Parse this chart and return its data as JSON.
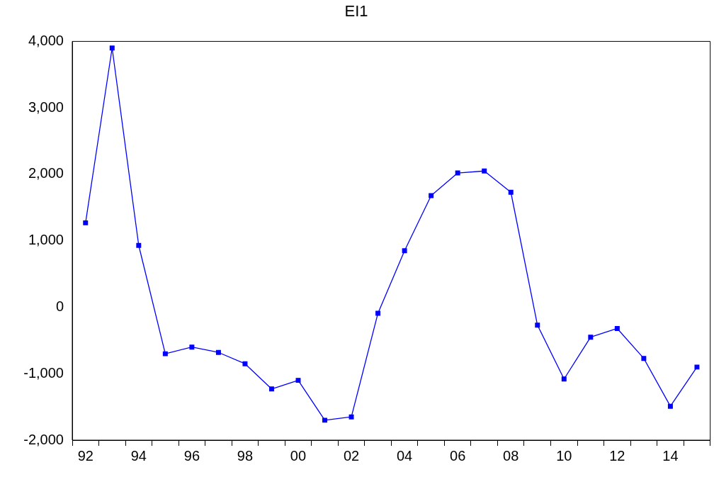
{
  "chart_data": {
    "type": "line",
    "title": "EI1",
    "categories": [
      "92",
      null,
      "94",
      null,
      "96",
      null,
      "98",
      null,
      "00",
      null,
      "02",
      null,
      "04",
      null,
      "06",
      null,
      "08",
      null,
      "10",
      null,
      "12",
      null,
      "14",
      null
    ],
    "series": [
      {
        "color": "#0000ff",
        "values": [
          1270,
          3900,
          930,
          -700,
          -600,
          -680,
          -850,
          -1230,
          -1100,
          -1700,
          -1650,
          -90,
          850,
          1680,
          2020,
          2050,
          1730,
          -270,
          -1080,
          -450,
          -320,
          -770,
          -1490,
          -900
        ]
      }
    ],
    "ylim": [
      -2000,
      4000
    ],
    "yticks": [
      {
        "value": -2000,
        "label": "-2,000"
      },
      {
        "value": -1000,
        "label": "-1,000"
      },
      0,
      {
        "value": 1000,
        "label": "1,000"
      },
      {
        "value": 2000,
        "label": "2,000"
      },
      {
        "value": 3000,
        "label": "3,000"
      },
      {
        "value": 4000,
        "label": "4,000"
      }
    ],
    "grid": false,
    "legend": false,
    "marker": "square",
    "line_style": "solid"
  }
}
